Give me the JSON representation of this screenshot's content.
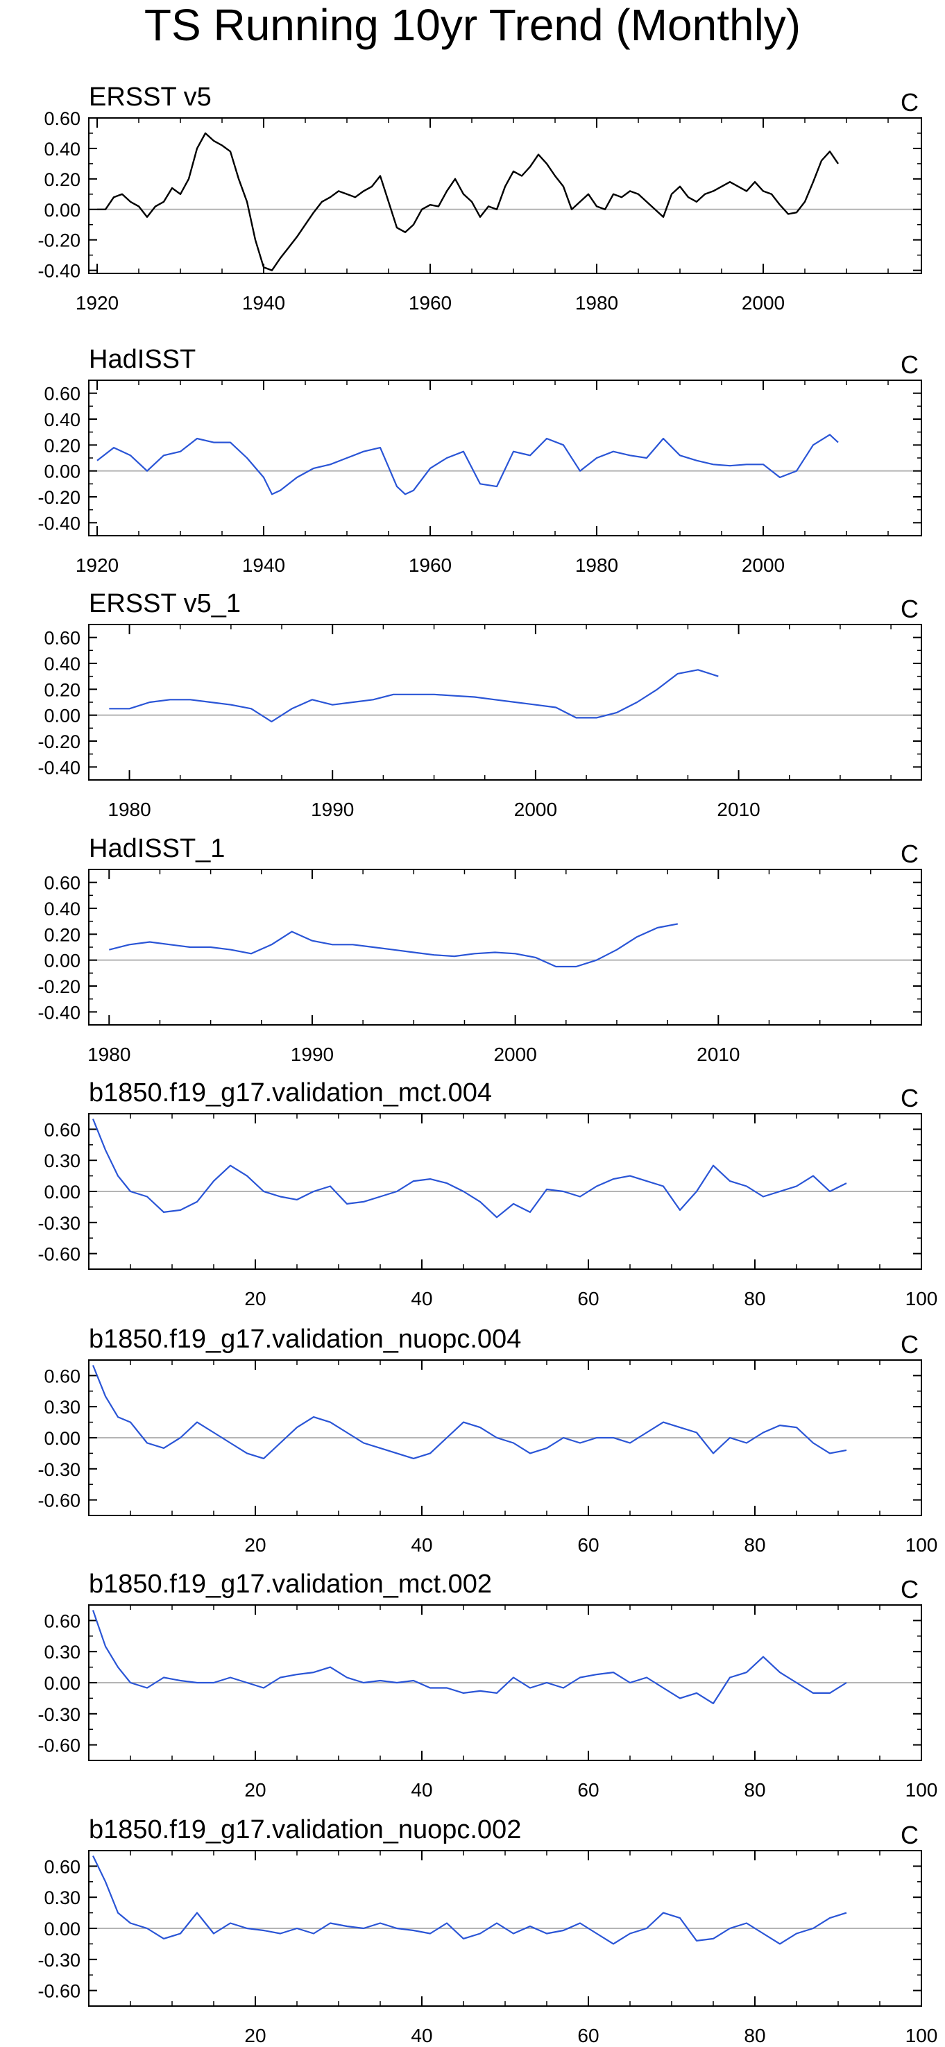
{
  "figure": {
    "title": "TS Running 10yr Trend (Monthly)"
  },
  "colors": {
    "obs_line": "#000000",
    "model_line": "#2a55d6",
    "zero_line": "#b4b4b4",
    "axis": "#000000"
  },
  "chart_data": [
    {
      "type": "line",
      "title": "ERSST v5",
      "units": "C",
      "line_color": "#000000",
      "xlim": [
        1919,
        2019
      ],
      "ylim": [
        -0.42,
        0.6
      ],
      "xticks": [
        1920,
        1940,
        1960,
        1980,
        2000
      ],
      "xtick_labels": [
        "1920",
        "1940",
        "1960",
        "1980",
        "2000"
      ],
      "xtick_side": "bottom",
      "yticks": [
        -0.4,
        -0.2,
        0.0,
        0.2,
        0.4,
        0.6
      ],
      "ytick_labels": [
        "-0.40",
        "-0.20",
        "0.00",
        "0.20",
        "0.40",
        "0.60"
      ],
      "x": [
        1920,
        1921,
        1922,
        1923,
        1924,
        1925,
        1926,
        1927,
        1928,
        1929,
        1930,
        1931,
        1932,
        1933,
        1934,
        1935,
        1936,
        1937,
        1938,
        1939,
        1940,
        1941,
        1942,
        1943,
        1944,
        1945,
        1946,
        1947,
        1948,
        1949,
        1950,
        1951,
        1952,
        1953,
        1954,
        1955,
        1956,
        1957,
        1958,
        1959,
        1960,
        1961,
        1962,
        1963,
        1964,
        1965,
        1966,
        1967,
        1968,
        1969,
        1970,
        1971,
        1972,
        1973,
        1974,
        1975,
        1976,
        1977,
        1978,
        1979,
        1980,
        1981,
        1982,
        1983,
        1984,
        1985,
        1986,
        1987,
        1988,
        1989,
        1990,
        1991,
        1992,
        1993,
        1994,
        1995,
        1996,
        1997,
        1998,
        1999,
        2000,
        2001,
        2002,
        2003,
        2004,
        2005,
        2006,
        2007,
        2008,
        2009
      ],
      "y": [
        0.0,
        0.0,
        0.08,
        0.1,
        0.05,
        0.02,
        -0.05,
        0.02,
        0.05,
        0.14,
        0.1,
        0.2,
        0.4,
        0.5,
        0.45,
        0.42,
        0.38,
        0.2,
        0.05,
        -0.2,
        -0.38,
        -0.4,
        -0.32,
        -0.25,
        -0.18,
        -0.1,
        -0.02,
        0.05,
        0.08,
        0.12,
        0.1,
        0.08,
        0.12,
        0.15,
        0.22,
        0.05,
        -0.12,
        -0.15,
        -0.1,
        0.0,
        0.03,
        0.02,
        0.12,
        0.2,
        0.1,
        0.05,
        -0.05,
        0.02,
        0.0,
        0.15,
        0.25,
        0.22,
        0.28,
        0.36,
        0.3,
        0.22,
        0.15,
        0.0,
        0.05,
        0.1,
        0.02,
        0.0,
        0.1,
        0.08,
        0.12,
        0.1,
        0.05,
        0.0,
        -0.05,
        0.1,
        0.15,
        0.08,
        0.05,
        0.1,
        0.12,
        0.15,
        0.18,
        0.15,
        0.12,
        0.18,
        0.12,
        0.1,
        0.03,
        -0.03,
        -0.02,
        0.05,
        0.18,
        0.32,
        0.38,
        0.3
      ]
    },
    {
      "type": "line",
      "title": "HadISST",
      "units": "C",
      "line_color": "#2a55d6",
      "xlim": [
        1919,
        2019
      ],
      "ylim": [
        -0.5,
        0.7
      ],
      "xticks": [
        1920,
        1940,
        1960,
        1980,
        2000
      ],
      "xtick_labels": [
        "1920",
        "1940",
        "1960",
        "1980",
        "2000"
      ],
      "xtick_side": "bottom",
      "yticks": [
        -0.4,
        -0.2,
        0.0,
        0.2,
        0.4,
        0.6
      ],
      "ytick_labels": [
        "-0.40",
        "-0.20",
        "0.00",
        "0.20",
        "0.40",
        "0.60"
      ],
      "x": [
        1920,
        1922,
        1924,
        1926,
        1928,
        1930,
        1932,
        1934,
        1936,
        1938,
        1940,
        1941,
        1942,
        1944,
        1946,
        1948,
        1950,
        1952,
        1954,
        1956,
        1957,
        1958,
        1960,
        1962,
        1964,
        1966,
        1968,
        1970,
        1972,
        1974,
        1976,
        1978,
        1980,
        1982,
        1984,
        1986,
        1988,
        1990,
        1992,
        1994,
        1996,
        1998,
        2000,
        2002,
        2004,
        2006,
        2008,
        2009
      ],
      "y": [
        0.08,
        0.18,
        0.12,
        0.0,
        0.12,
        0.15,
        0.25,
        0.22,
        0.22,
        0.1,
        -0.05,
        -0.18,
        -0.15,
        -0.05,
        0.02,
        0.05,
        0.1,
        0.15,
        0.18,
        -0.12,
        -0.18,
        -0.15,
        0.02,
        0.1,
        0.15,
        -0.1,
        -0.12,
        0.15,
        0.12,
        0.25,
        0.2,
        0.0,
        0.1,
        0.15,
        0.12,
        0.1,
        0.25,
        0.12,
        0.08,
        0.05,
        0.04,
        0.05,
        0.05,
        -0.05,
        0.0,
        0.2,
        0.28,
        0.22
      ]
    },
    {
      "type": "line",
      "title": "ERSST v5_1",
      "units": "C",
      "line_color": "#2a55d6",
      "xlim": [
        1978,
        2019
      ],
      "ylim": [
        -0.5,
        0.7
      ],
      "xticks": [
        1980,
        1990,
        2000,
        2010
      ],
      "xtick_labels": [
        "1980",
        "1990",
        "2000",
        "2010"
      ],
      "xtick_side": "bottom",
      "yticks": [
        -0.4,
        -0.2,
        0.0,
        0.2,
        0.4,
        0.6
      ],
      "ytick_labels": [
        "-0.40",
        "-0.20",
        "0.00",
        "0.20",
        "0.40",
        "0.60"
      ],
      "x": [
        1979,
        1980,
        1981,
        1982,
        1983,
        1984,
        1985,
        1986,
        1987,
        1988,
        1989,
        1990,
        1991,
        1992,
        1993,
        1994,
        1995,
        1996,
        1997,
        1998,
        1999,
        2000,
        2001,
        2002,
        2003,
        2004,
        2005,
        2006,
        2007,
        2008,
        2009
      ],
      "y": [
        0.05,
        0.05,
        0.1,
        0.12,
        0.12,
        0.1,
        0.08,
        0.05,
        -0.05,
        0.05,
        0.12,
        0.08,
        0.1,
        0.12,
        0.16,
        0.16,
        0.16,
        0.15,
        0.14,
        0.12,
        0.1,
        0.08,
        0.06,
        -0.02,
        -0.02,
        0.02,
        0.1,
        0.2,
        0.32,
        0.35,
        0.3
      ]
    },
    {
      "type": "line",
      "title": "HadISST_1",
      "units": "C",
      "line_color": "#2a55d6",
      "xlim": [
        1979,
        2020
      ],
      "ylim": [
        -0.5,
        0.7
      ],
      "xticks": [
        1980,
        1990,
        2000,
        2010
      ],
      "xtick_labels": [
        "1980",
        "1990",
        "2000",
        "2010"
      ],
      "xtick_side": "bottom",
      "yticks": [
        -0.4,
        -0.2,
        0.0,
        0.2,
        0.4,
        0.6
      ],
      "ytick_labels": [
        "-0.40",
        "-0.20",
        "0.00",
        "0.20",
        "0.40",
        "0.60"
      ],
      "x": [
        1980,
        1981,
        1982,
        1983,
        1984,
        1985,
        1986,
        1987,
        1988,
        1989,
        1990,
        1991,
        1992,
        1993,
        1994,
        1995,
        1996,
        1997,
        1998,
        1999,
        2000,
        2001,
        2002,
        2003,
        2004,
        2005,
        2006,
        2007,
        2008
      ],
      "y": [
        0.08,
        0.12,
        0.14,
        0.12,
        0.1,
        0.1,
        0.08,
        0.05,
        0.12,
        0.22,
        0.15,
        0.12,
        0.12,
        0.1,
        0.08,
        0.06,
        0.04,
        0.03,
        0.05,
        0.06,
        0.05,
        0.02,
        -0.05,
        -0.05,
        0.0,
        0.08,
        0.18,
        0.25,
        0.28
      ]
    },
    {
      "type": "line",
      "title": "b1850.f19_g17.validation_mct.004",
      "units": "C",
      "line_color": "#2a55d6",
      "xlim": [
        0,
        100
      ],
      "ylim": [
        -0.75,
        0.75
      ],
      "xticks": [
        20,
        40,
        60,
        80,
        100
      ],
      "xtick_labels": [
        "20",
        "40",
        "60",
        "80",
        "100"
      ],
      "xtick_side": "bottom",
      "yticks": [
        -0.6,
        -0.3,
        0.0,
        0.3,
        0.6
      ],
      "ytick_labels": [
        "-0.60",
        "-0.30",
        "0.00",
        "0.30",
        "0.60"
      ],
      "x": [
        0.5,
        2,
        3.5,
        5,
        7,
        9,
        11,
        13,
        15,
        17,
        19,
        21,
        23,
        25,
        27,
        29,
        31,
        33,
        35,
        37,
        39,
        41,
        43,
        45,
        47,
        49,
        51,
        53,
        55,
        57,
        59,
        61,
        63,
        65,
        67,
        69,
        71,
        73,
        75,
        77,
        79,
        81,
        83,
        85,
        87,
        89,
        91
      ],
      "y": [
        0.7,
        0.4,
        0.15,
        0.0,
        -0.05,
        -0.2,
        -0.18,
        -0.1,
        0.1,
        0.25,
        0.15,
        0.0,
        -0.05,
        -0.08,
        0.0,
        0.05,
        -0.12,
        -0.1,
        -0.05,
        0.0,
        0.1,
        0.12,
        0.08,
        0.0,
        -0.1,
        -0.25,
        -0.12,
        -0.2,
        0.02,
        0.0,
        -0.05,
        0.05,
        0.12,
        0.15,
        0.1,
        0.05,
        -0.18,
        0.0,
        0.25,
        0.1,
        0.05,
        -0.05,
        0.0,
        0.05,
        0.15,
        0.0,
        0.08
      ]
    },
    {
      "type": "line",
      "title": "b1850.f19_g17.validation_nuopc.004",
      "units": "C",
      "line_color": "#2a55d6",
      "xlim": [
        0,
        100
      ],
      "ylim": [
        -0.75,
        0.75
      ],
      "xticks": [
        20,
        40,
        60,
        80,
        100
      ],
      "xtick_labels": [
        "20",
        "40",
        "60",
        "80",
        "100"
      ],
      "xtick_side": "bottom",
      "yticks": [
        -0.6,
        -0.3,
        0.0,
        0.3,
        0.6
      ],
      "ytick_labels": [
        "-0.60",
        "-0.30",
        "0.00",
        "0.30",
        "0.60"
      ],
      "x": [
        0.5,
        2,
        3.5,
        5,
        7,
        9,
        11,
        13,
        15,
        17,
        19,
        21,
        23,
        25,
        27,
        29,
        31,
        33,
        35,
        37,
        39,
        41,
        43,
        45,
        47,
        49,
        51,
        53,
        55,
        57,
        59,
        61,
        63,
        65,
        67,
        69,
        71,
        73,
        75,
        77,
        79,
        81,
        83,
        85,
        87,
        89,
        91
      ],
      "y": [
        0.7,
        0.4,
        0.2,
        0.15,
        -0.05,
        -0.1,
        0.0,
        0.15,
        0.05,
        -0.05,
        -0.15,
        -0.2,
        -0.05,
        0.1,
        0.2,
        0.15,
        0.05,
        -0.05,
        -0.1,
        -0.15,
        -0.2,
        -0.15,
        0.0,
        0.15,
        0.1,
        0.0,
        -0.05,
        -0.15,
        -0.1,
        0.0,
        -0.05,
        0.0,
        0.0,
        -0.05,
        0.05,
        0.15,
        0.1,
        0.05,
        -0.15,
        0.0,
        -0.05,
        0.05,
        0.12,
        0.1,
        -0.05,
        -0.15,
        -0.12
      ]
    },
    {
      "type": "line",
      "title": "b1850.f19_g17.validation_mct.002",
      "units": "C",
      "line_color": "#2a55d6",
      "xlim": [
        0,
        100
      ],
      "ylim": [
        -0.75,
        0.75
      ],
      "xticks": [
        20,
        40,
        60,
        80,
        100
      ],
      "xtick_labels": [
        "20",
        "40",
        "60",
        "80",
        "100"
      ],
      "xtick_side": "bottom",
      "yticks": [
        -0.6,
        -0.3,
        0.0,
        0.3,
        0.6
      ],
      "ytick_labels": [
        "-0.60",
        "-0.30",
        "0.00",
        "0.30",
        "0.60"
      ],
      "x": [
        0.5,
        2,
        3.5,
        5,
        7,
        9,
        11,
        13,
        15,
        17,
        19,
        21,
        23,
        25,
        27,
        29,
        31,
        33,
        35,
        37,
        39,
        41,
        43,
        45,
        47,
        49,
        51,
        53,
        55,
        57,
        59,
        61,
        63,
        65,
        67,
        69,
        71,
        73,
        75,
        77,
        79,
        81,
        83,
        85,
        87,
        89,
        91
      ],
      "y": [
        0.7,
        0.35,
        0.15,
        0.0,
        -0.05,
        0.05,
        0.02,
        0.0,
        0.0,
        0.05,
        0.0,
        -0.05,
        0.05,
        0.08,
        0.1,
        0.15,
        0.05,
        0.0,
        0.02,
        0.0,
        0.02,
        -0.05,
        -0.05,
        -0.1,
        -0.08,
        -0.1,
        0.05,
        -0.05,
        0.0,
        -0.05,
        0.05,
        0.08,
        0.1,
        0.0,
        0.05,
        -0.05,
        -0.15,
        -0.1,
        -0.2,
        0.05,
        0.1,
        0.25,
        0.1,
        0.0,
        -0.1,
        -0.1,
        0.0
      ]
    },
    {
      "type": "line",
      "title": "b1850.f19_g17.validation_nuopc.002",
      "units": "C",
      "line_color": "#2a55d6",
      "xlim": [
        0,
        100
      ],
      "ylim": [
        -0.75,
        0.75
      ],
      "xticks": [
        20,
        40,
        60,
        80,
        100
      ],
      "xtick_labels": [
        "20",
        "40",
        "60",
        "80",
        "100"
      ],
      "xtick_side": "bottom",
      "yticks": [
        -0.6,
        -0.3,
        0.0,
        0.3,
        0.6
      ],
      "ytick_labels": [
        "-0.60",
        "-0.30",
        "0.00",
        "0.30",
        "0.60"
      ],
      "x": [
        0.5,
        2,
        3.5,
        5,
        7,
        9,
        11,
        13,
        15,
        17,
        19,
        21,
        23,
        25,
        27,
        29,
        31,
        33,
        35,
        37,
        39,
        41,
        43,
        45,
        47,
        49,
        51,
        53,
        55,
        57,
        59,
        61,
        63,
        65,
        67,
        69,
        71,
        73,
        75,
        77,
        79,
        81,
        83,
        85,
        87,
        89,
        91
      ],
      "y": [
        0.7,
        0.45,
        0.15,
        0.05,
        0.0,
        -0.1,
        -0.05,
        0.15,
        -0.05,
        0.05,
        0.0,
        -0.02,
        -0.05,
        0.0,
        -0.05,
        0.05,
        0.02,
        0.0,
        0.05,
        0.0,
        -0.02,
        -0.05,
        0.05,
        -0.1,
        -0.05,
        0.05,
        -0.05,
        0.02,
        -0.05,
        -0.02,
        0.05,
        -0.05,
        -0.15,
        -0.05,
        0.0,
        0.15,
        0.1,
        -0.12,
        -0.1,
        0.0,
        0.05,
        -0.05,
        -0.15,
        -0.05,
        0.0,
        0.1,
        0.15
      ]
    }
  ]
}
